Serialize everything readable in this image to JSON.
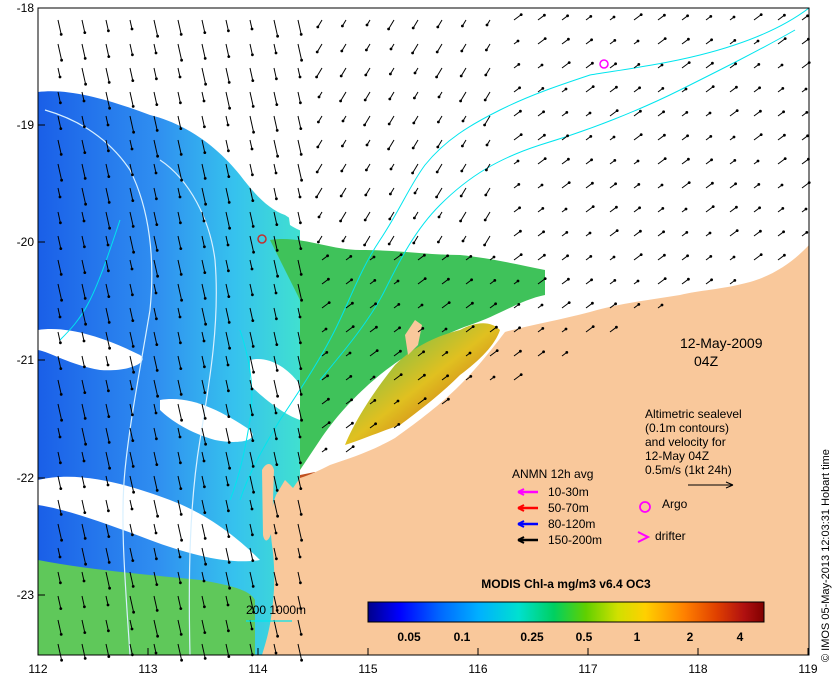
{
  "map": {
    "x_ticks": [
      "112",
      "113",
      "114",
      "115",
      "116",
      "117",
      "118",
      "119"
    ],
    "y_ticks": [
      "-18",
      "-19",
      "-20",
      "-21",
      "-22",
      "-23"
    ],
    "colors": {
      "land": "#f9c89b",
      "cloud": "#ffffff",
      "contour": "#00e5ee",
      "isobath": "#d8f0ff"
    }
  },
  "date": {
    "line1": "12-May-2009",
    "line2": "04Z"
  },
  "altimetry": {
    "lines": [
      "Altimetric sealevel",
      "(0.1m contours)",
      "and velocity for",
      "12-May 04Z",
      "0.5m/s (1kt 24h)"
    ]
  },
  "legend": {
    "title": "ANMN 12h avg",
    "items": [
      {
        "label": "10-30m",
        "color": "#ff00ff"
      },
      {
        "label": "50-70m",
        "color": "#ff0000"
      },
      {
        "label": "80-120m",
        "color": "#0000ff"
      },
      {
        "label": "150-200m",
        "color": "#000000"
      }
    ],
    "argo": "Argo",
    "drifter": "drifter",
    "marker_color": "#ff00ff"
  },
  "isobath_label": "200  1000m",
  "colorbar": {
    "title": "MODIS Chl-a mg/m3 v6.4 OC3",
    "ticks": [
      "0.05",
      "0.1",
      "0.25",
      "0.5",
      "1",
      "2",
      "4"
    ],
    "colors": [
      "#00008b",
      "#0000ff",
      "#0066ff",
      "#00b0ff",
      "#00e0d0",
      "#00d060",
      "#60d000",
      "#d0e000",
      "#ffd000",
      "#ff8000",
      "#e04000",
      "#b01010",
      "#800000"
    ]
  },
  "credit": "© IMOS 05-May-2013 12:03:31 Hobart time"
}
